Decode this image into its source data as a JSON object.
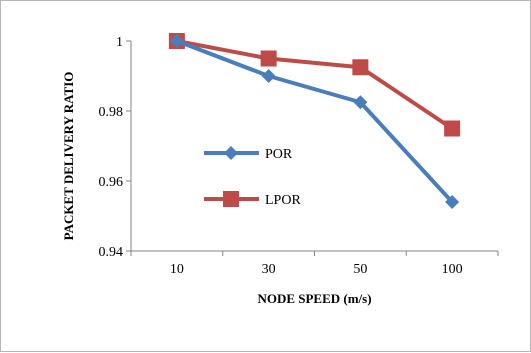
{
  "chart_data": {
    "type": "line",
    "title": "",
    "xlabel": "NODE SPEED (m/s)",
    "ylabel": "PACKET DELIVERY RATIO",
    "categories": [
      "10",
      "30",
      "50",
      "100"
    ],
    "ylim": [
      0.94,
      1.0
    ],
    "yticks": [
      "0.94",
      "0.96",
      "0.98",
      "1"
    ],
    "ytick_values": [
      0.94,
      0.96,
      0.98,
      1.0
    ],
    "grid": false,
    "legend": "inside-center-left",
    "series": [
      {
        "name": "POR",
        "values": [
          1.0,
          0.99,
          0.9825,
          0.954
        ],
        "color": "#4a7ebb",
        "marker": "diamond"
      },
      {
        "name": "LPOR",
        "values": [
          1.0,
          0.995,
          0.9925,
          0.975
        ],
        "color": "#be4b48",
        "marker": "square"
      }
    ]
  }
}
